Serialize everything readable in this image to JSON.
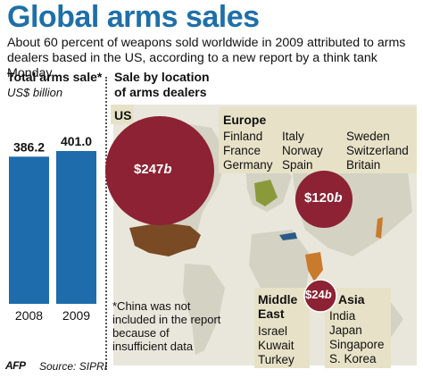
{
  "title": "Global arms sales",
  "subtitle": "About 60 percent of weapons sold worldwide in 2009 attributed to arms dealers based in the US, according to a new report by a think tank Monday",
  "left_panel": {
    "header": "Total arms sale*",
    "unit": "US$ billion"
  },
  "right_panel": {
    "header_line1": "Sale by location",
    "header_line2": "of arms dealers"
  },
  "regions": {
    "us": {
      "label": "US",
      "value_num": "$247",
      "value_unit": "b"
    },
    "europe": {
      "label": "Europe",
      "countries_col1": [
        "Finland",
        "France",
        "Germany"
      ],
      "countries_col2": [
        "Italy",
        "Norway",
        "Spain"
      ],
      "countries_col3": [
        "Sweden",
        "Switzerland",
        "Britain"
      ],
      "value_num": "$120",
      "value_unit": "b"
    },
    "middle_east": {
      "label_line1": "Middle",
      "label_line2": "East",
      "countries": [
        "Israel",
        "Kuwait",
        "Turkey"
      ]
    },
    "asia": {
      "label": "Asia",
      "countries": [
        "India",
        "Japan",
        "Singapore",
        "S. Korea"
      ],
      "value_num": "$24",
      "value_unit": "b"
    }
  },
  "note": "*China was not included in the report because of insufficient data",
  "footer": {
    "agency": "AFP",
    "source": "Source: SIPRI"
  },
  "colors": {
    "title": "#1f6fa8",
    "bar": "#1e6cab",
    "circle": "#8c2233",
    "panel": "#e7e2c7",
    "us_map": "#7a4a25"
  },
  "chart_data": [
    {
      "type": "bar",
      "title": "Total arms sale*",
      "ylabel": "US$ billion",
      "categories": [
        "2008",
        "2009"
      ],
      "values": [
        386.2,
        401.0
      ],
      "value_labels": [
        "386.2",
        "401.0"
      ]
    },
    {
      "type": "bubble",
      "title": "Sale by location of arms dealers",
      "categories": [
        "US",
        "Europe",
        "Middle East / Asia"
      ],
      "values": [
        247,
        120,
        24
      ],
      "unit": "US$ billion"
    }
  ]
}
